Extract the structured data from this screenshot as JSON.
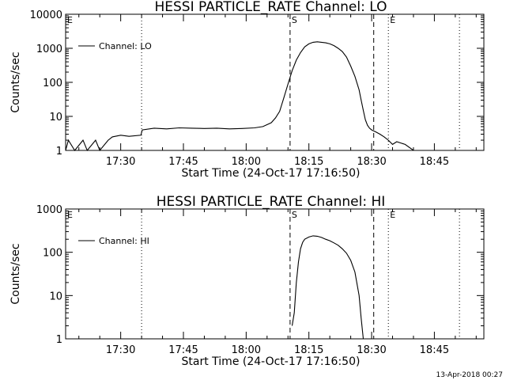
{
  "chart_data": [
    {
      "type": "line",
      "title": "HESSI PARTICLE_RATE Channel: LO",
      "xlabel": "Start Time (24-Oct-17 17:16:50)",
      "ylabel": "Counts/sec",
      "yscale": "log",
      "ylim": [
        1,
        10000
      ],
      "xlim": [
        "17:16:50",
        "18:56:50"
      ],
      "x_ticks": [
        "17:30",
        "17:45",
        "18:00",
        "18:15",
        "18:30",
        "18:45"
      ],
      "y_ticks": [
        "1",
        "10",
        "100",
        "1000",
        "10000"
      ],
      "legend": {
        "position": "top-left",
        "entries": [
          "Channel: LO"
        ]
      },
      "markers": [
        {
          "label": "E",
          "time": "17:16:50",
          "style": "dotted"
        },
        {
          "label": "",
          "time": "17:35:00",
          "style": "dotted"
        },
        {
          "label": "S",
          "time": "18:10:30",
          "style": "dashed"
        },
        {
          "label": "",
          "time": "18:30:30",
          "style": "dashed"
        },
        {
          "label": "E",
          "time": "18:34:00",
          "style": "dotted"
        },
        {
          "label": "",
          "time": "18:51:00",
          "style": "dotted"
        }
      ],
      "series": [
        {
          "name": "Channel: LO",
          "x": [
            "17:16:50",
            "17:17:30",
            "17:19:00",
            "17:21:00",
            "17:22:00",
            "17:24:00",
            "17:25:00",
            "17:27:00",
            "17:28:00",
            "17:30:00",
            "17:32:00",
            "17:34:50",
            "17:35:10",
            "17:38:00",
            "17:41:00",
            "17:44:00",
            "17:47:00",
            "17:50:00",
            "17:53:00",
            "17:56:00",
            "17:59:00",
            "18:02:00",
            "18:04:00",
            "18:06:00",
            "18:07:00",
            "18:08:00",
            "18:09:00",
            "18:10:00",
            "18:11:00",
            "18:12:00",
            "18:13:00",
            "18:14:00",
            "18:15:00",
            "18:16:00",
            "18:17:00",
            "18:18:00",
            "18:19:00",
            "18:20:00",
            "18:21:00",
            "18:22:00",
            "18:23:00",
            "18:24:00",
            "18:25:00",
            "18:26:00",
            "18:27:00",
            "18:27:30",
            "18:28:00",
            "18:28:30",
            "18:29:00",
            "18:29:30",
            "18:30:00",
            "18:31:00",
            "18:32:00",
            "18:33:00",
            "18:34:00",
            "18:35:00",
            "18:36:00",
            "18:38:00",
            "18:40:00",
            "18:42:00",
            "18:44:00",
            "18:46:00",
            "18:48:00",
            "18:50:00",
            "18:52:00",
            "18:54:00"
          ],
          "y": [
            1,
            2,
            1,
            2,
            1,
            2,
            1,
            2,
            2.5,
            2.8,
            2.6,
            2.8,
            4,
            4.5,
            4.3,
            4.6,
            4.5,
            4.4,
            4.5,
            4.3,
            4.4,
            4.6,
            5,
            6.5,
            9,
            14,
            35,
            90,
            220,
            450,
            750,
            1100,
            1350,
            1500,
            1550,
            1500,
            1450,
            1350,
            1200,
            1000,
            800,
            550,
            300,
            150,
            60,
            30,
            15,
            8,
            5.5,
            4.5,
            4,
            3.5,
            3,
            2.5,
            2,
            1.5,
            1.8,
            1.5,
            1,
            1,
            1,
            1,
            1,
            1,
            1,
            1
          ]
        }
      ]
    },
    {
      "type": "line",
      "title": "HESSI PARTICLE_RATE Channel: HI",
      "xlabel": "Start Time (24-Oct-17 17:16:50)",
      "ylabel": "Counts/sec",
      "yscale": "log",
      "ylim": [
        1,
        1000
      ],
      "xlim": [
        "17:16:50",
        "18:56:50"
      ],
      "x_ticks": [
        "17:30",
        "17:45",
        "18:00",
        "18:15",
        "18:30",
        "18:45"
      ],
      "y_ticks": [
        "1",
        "10",
        "100",
        "1000"
      ],
      "legend": {
        "position": "top-left",
        "entries": [
          "Channel: HI"
        ]
      },
      "markers": [
        {
          "label": "E",
          "time": "17:16:50",
          "style": "dotted"
        },
        {
          "label": "",
          "time": "17:35:00",
          "style": "dotted"
        },
        {
          "label": "S",
          "time": "18:10:30",
          "style": "dashed"
        },
        {
          "label": "",
          "time": "18:30:30",
          "style": "dashed"
        },
        {
          "label": "E",
          "time": "18:34:00",
          "style": "dotted"
        },
        {
          "label": "",
          "time": "18:51:00",
          "style": "dotted"
        }
      ],
      "series": [
        {
          "name": "Channel: HI",
          "x": [
            "18:11:00",
            "18:11:30",
            "18:12:00",
            "18:12:30",
            "18:13:00",
            "18:13:30",
            "18:14:00",
            "18:15:00",
            "18:16:00",
            "18:17:00",
            "18:18:00",
            "18:19:00",
            "18:20:00",
            "18:21:00",
            "18:22:00",
            "18:23:00",
            "18:24:00",
            "18:25:00",
            "18:26:00",
            "18:27:00",
            "18:27:30",
            "18:28:00"
          ],
          "y": [
            2,
            4,
            20,
            60,
            120,
            170,
            200,
            225,
            240,
            235,
            220,
            200,
            185,
            165,
            145,
            120,
            95,
            65,
            35,
            10,
            3,
            1
          ]
        }
      ]
    }
  ],
  "timestamp": "13-Apr-2018 00:27"
}
